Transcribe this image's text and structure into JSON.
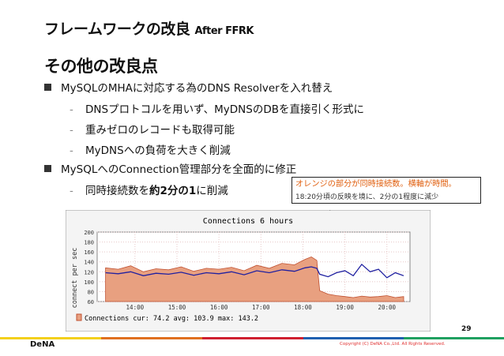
{
  "slide": {
    "title": "フレームワークの改良",
    "title_suffix": "After FFRK",
    "heading": "その他の改良点",
    "bullets": [
      {
        "text": "MySQLのMHAに対応する為のDNS Resolverを入れ替え",
        "sub": [
          "DNSプロトコルを用いず、MyDNSのDBを直接引く形式に",
          "重みゼロのレコードも取得可能",
          "MyDNSへの負荷を大きく削減"
        ]
      },
      {
        "text": "MySQLへのConnection管理部分を全面的に修正",
        "sub": []
      }
    ],
    "sub_last_prefix": "同時接続数を",
    "sub_last_bold": "約2分の1",
    "sub_last_suffix": "に削減",
    "callout_line1": "オレンジの部分が同時接続数。横軸が時間。",
    "callout_line2": "18:20分頃の反映を境に、2分の1程度に減少",
    "page_number": "29",
    "logo": "DeNA",
    "copyright": "Copyright (C) DeNA Co.,Ltd. All Rights Reserved.",
    "colors": {
      "orange": "#e8a080",
      "orange_edge": "#c05030",
      "blue": "#2020a0",
      "callout_text": "#e06010",
      "footer_bars": [
        "#f3d01c",
        "#e07020",
        "#d02030",
        "#2060b0",
        "#20a060"
      ]
    }
  },
  "chart_data": {
    "type": "area",
    "title": "Connections 6 hours",
    "ylabel": "connect per sec",
    "ylim": [
      60,
      200
    ],
    "yticks": [
      "60",
      "80",
      "100",
      "120",
      "140",
      "160",
      "180",
      "200"
    ],
    "xticks": [
      "14:00",
      "15:00",
      "16:00",
      "17:00",
      "18:00",
      "19:00",
      "20:00"
    ],
    "x_hours": [
      13.3,
      13.6,
      13.9,
      14.2,
      14.5,
      14.8,
      15.1,
      15.4,
      15.7,
      16.0,
      16.3,
      16.6,
      16.9,
      17.2,
      17.5,
      17.8,
      18.05,
      18.2,
      18.33,
      18.4,
      18.6,
      18.8,
      19.0,
      19.2,
      19.4,
      19.6,
      19.8,
      20.0,
      20.2,
      20.4
    ],
    "series": [
      {
        "name": "Connections",
        "values": [
          128,
          125,
          132,
          120,
          126,
          124,
          130,
          121,
          127,
          125,
          129,
          122,
          133,
          127,
          137,
          134,
          145,
          150,
          143,
          82,
          75,
          72,
          70,
          68,
          71,
          69,
          70,
          72,
          68,
          70
        ]
      },
      {
        "values": [
          118,
          116,
          120,
          112,
          117,
          115,
          119,
          113,
          118,
          116,
          120,
          114,
          122,
          118,
          124,
          121,
          128,
          130,
          127,
          115,
          110,
          118,
          122,
          112,
          135,
          120,
          125,
          108,
          118,
          112
        ]
      }
    ],
    "legend": "Connections   cur:  74.2   avg: 103.9   max: 143.2",
    "grid": true
  }
}
